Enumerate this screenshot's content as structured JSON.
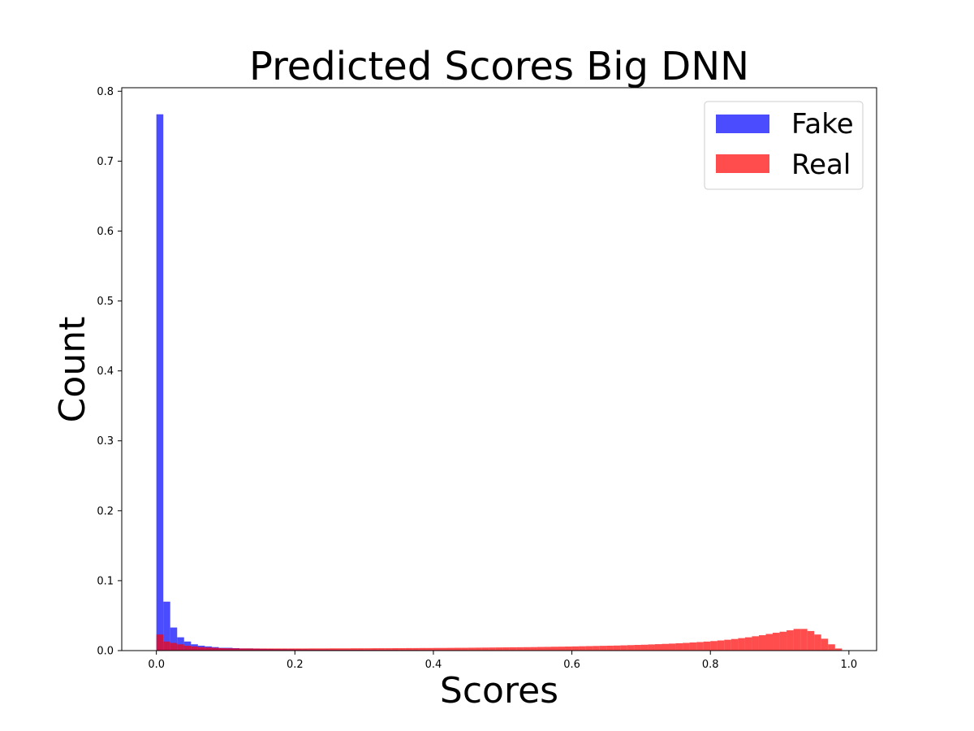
{
  "chart_data": {
    "type": "bar",
    "title": "Predicted Scores Big DNN",
    "xlabel": "Scores",
    "ylabel": "Count",
    "xlim": [
      -0.05,
      1.04
    ],
    "ylim": [
      0,
      0.805
    ],
    "xticks": [
      "0.0",
      "0.2",
      "0.4",
      "0.6",
      "0.8",
      "1.0"
    ],
    "yticks": [
      "0.0",
      "0.1",
      "0.2",
      "0.3",
      "0.4",
      "0.5",
      "0.6",
      "0.7",
      "0.8"
    ],
    "grid": false,
    "legend_position": "top-right",
    "bin_width": 0.01,
    "series": [
      {
        "name": "Fake",
        "color": "#0000ff",
        "opacity": 0.7,
        "values": [
          0.767,
          0.07,
          0.033,
          0.019,
          0.013,
          0.009,
          0.007,
          0.006,
          0.005,
          0.004,
          0.004,
          0.0035,
          0.003,
          0.003,
          0.0028,
          0.0025,
          0.0023,
          0.0021,
          0.002,
          0.0019,
          0.0018,
          0.0017,
          0.0016,
          0.0015,
          0.0015,
          0.0014,
          0.0013,
          0.0013,
          0.0012,
          0.0012,
          0.0011,
          0.0011,
          0.001,
          0.001,
          0.001,
          0.0009,
          0.0009,
          0.0009,
          0.0008,
          0.0008,
          0.0008,
          0.0007,
          0.0007,
          0.0007,
          0.0007,
          0.0006,
          0.0006,
          0.0006,
          0.0006,
          0.0005,
          0.0005,
          0.0005,
          0.0005,
          0.0005,
          0.0004,
          0.0004,
          0.0004,
          0.0004,
          0.0004,
          0.0004,
          0.0003,
          0.0003,
          0.0003,
          0.0003,
          0.0003,
          0.0003,
          0.0003,
          0.0003,
          0.0003,
          0.0002,
          0.0002,
          0.0002,
          0.0002,
          0.0002,
          0.0002,
          0.0002,
          0.0002,
          0.0002,
          0.0002,
          0.0002,
          0.0002,
          0.0002,
          0.0002,
          0.0002,
          0.0002,
          0.0002,
          0.0002,
          0.0002,
          0.0002,
          0.0002,
          0.0002,
          0.0002,
          0.0002,
          0.0001,
          0.0001,
          0.0001,
          0.0001,
          0.0001,
          0.0001,
          0.0001
        ]
      },
      {
        "name": "Real",
        "color": "#ff0000",
        "opacity": 0.7,
        "values": [
          0.023,
          0.013,
          0.011,
          0.009,
          0.007,
          0.006,
          0.005,
          0.0045,
          0.004,
          0.0035,
          0.0033,
          0.0032,
          0.0031,
          0.0031,
          0.003,
          0.003,
          0.003,
          0.003,
          0.003,
          0.003,
          0.003,
          0.003,
          0.0031,
          0.0031,
          0.0031,
          0.0032,
          0.0032,
          0.0032,
          0.0033,
          0.0033,
          0.0033,
          0.0034,
          0.0034,
          0.0034,
          0.0035,
          0.0035,
          0.0036,
          0.0036,
          0.0037,
          0.0037,
          0.0038,
          0.0038,
          0.0039,
          0.004,
          0.004,
          0.0041,
          0.0042,
          0.0043,
          0.0044,
          0.0045,
          0.0046,
          0.0047,
          0.0048,
          0.0049,
          0.005,
          0.0052,
          0.0053,
          0.0055,
          0.0056,
          0.0058,
          0.006,
          0.0062,
          0.0064,
          0.0066,
          0.0068,
          0.007,
          0.0072,
          0.0075,
          0.0078,
          0.0081,
          0.0084,
          0.0088,
          0.0092,
          0.0096,
          0.01,
          0.0105,
          0.011,
          0.0116,
          0.0122,
          0.0129,
          0.0136,
          0.0145,
          0.0155,
          0.0166,
          0.0178,
          0.019,
          0.0205,
          0.022,
          0.0238,
          0.0255,
          0.027,
          0.029,
          0.031,
          0.031,
          0.028,
          0.023,
          0.017,
          0.009,
          0.003,
          0.0005
        ]
      }
    ]
  }
}
